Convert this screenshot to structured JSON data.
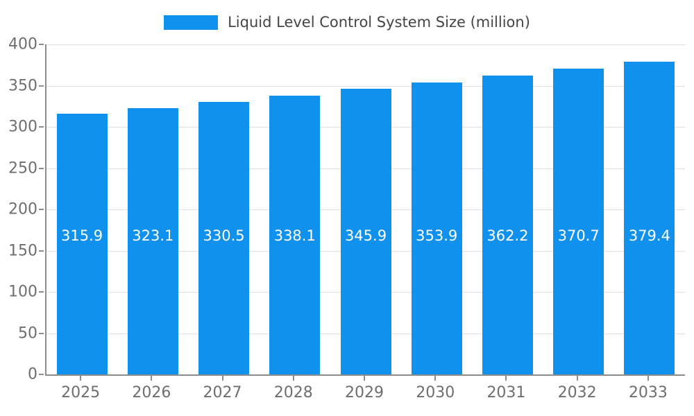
{
  "chart_data": {
    "type": "bar",
    "title": "Liquid Level Control System Size (million)",
    "categories": [
      "2025",
      "2026",
      "2027",
      "2028",
      "2029",
      "2030",
      "2031",
      "2032",
      "2033"
    ],
    "values": [
      315.9,
      323.1,
      330.5,
      338.1,
      345.9,
      353.9,
      362.2,
      370.7,
      379.4
    ],
    "xlabel": "",
    "ylabel": "",
    "ylim": [
      0,
      400
    ],
    "ytick_step": 50,
    "grid": true,
    "legend_position": "top-center",
    "value_labels": "inside-bar-white",
    "colors": {
      "bar": "#1191ee",
      "gridline": "#e0e0e0",
      "axis": "#8c8c8c",
      "tick_label": "#6e6e6e",
      "legend_text": "#454545",
      "value_label": "#ffffff",
      "background": "#ffffff"
    }
  }
}
